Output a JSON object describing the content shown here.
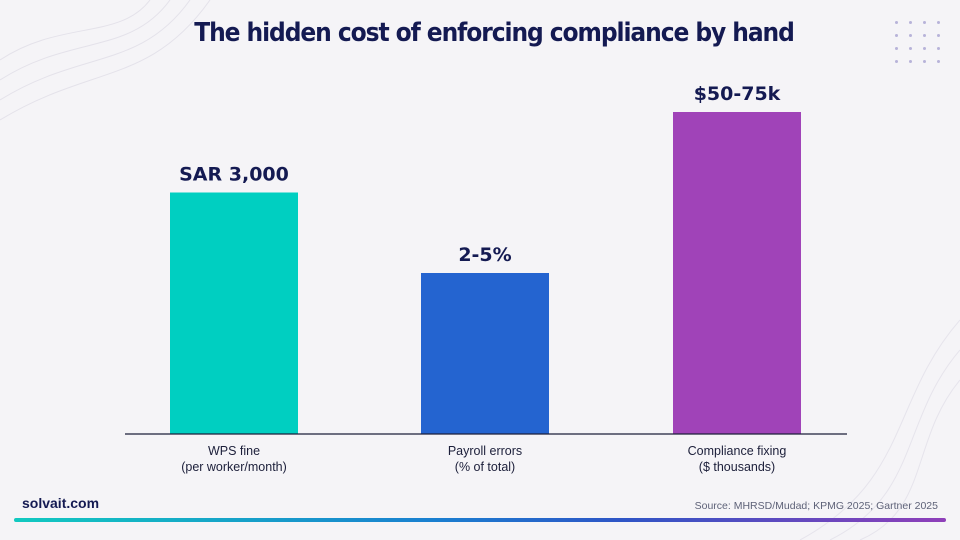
{
  "header": {
    "title": "The hidden cost of enforcing compliance by hand"
  },
  "footer": {
    "brand": "solvait.com",
    "source": "Source: MHRSD/Mudad; KPMG 2025; Gartner 2025"
  },
  "colors": {
    "title": "#141a52",
    "bar_teal": "#00cfc1",
    "bar_blue": "#2464d0",
    "bar_purple": "#a043b8",
    "axis": "#1c1f3a"
  },
  "chart_data": {
    "type": "bar",
    "title": "The hidden cost of enforcing compliance by hand",
    "categories": [
      [
        "WPS fine",
        "(per worker/month)"
      ],
      [
        "Payroll errors",
        "(% of total)"
      ],
      [
        "Compliance fixing",
        "($ thousands)"
      ]
    ],
    "data_labels": [
      "SAR 3,000",
      "2-5%",
      "$50-75k"
    ],
    "relative_heights": [
      0.75,
      0.5,
      1.0
    ],
    "bar_colors": [
      "#00cfc1",
      "#2464d0",
      "#a043b8"
    ],
    "grid": false,
    "legend": "none"
  }
}
